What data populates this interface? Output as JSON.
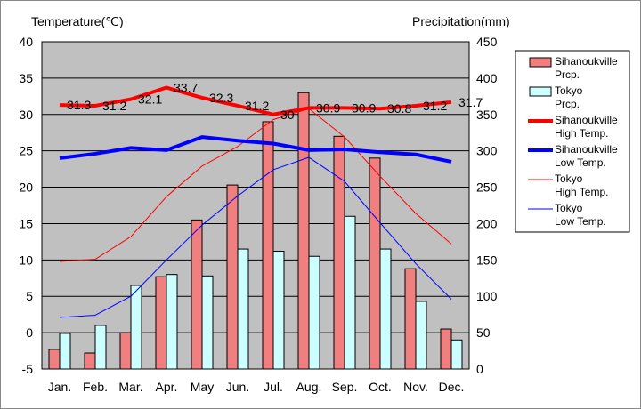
{
  "chart_data": {
    "type": "bar",
    "categories": [
      "Jan.",
      "Feb.",
      "Mar.",
      "Apr.",
      "May",
      "Jun.",
      "Jul.",
      "Aug.",
      "Sep.",
      "Oct.",
      "Nov.",
      "Dec."
    ],
    "left_axis": {
      "title": "Temperature(℃)",
      "min": -5,
      "max": 40,
      "step": 5
    },
    "right_axis": {
      "title": "Precipitation(mm)",
      "min": 0,
      "max": 450,
      "step": 50
    },
    "series": [
      {
        "name": "Sihanoukville Prcp.",
        "legend": [
          "Sihanoukville",
          "Prcp."
        ],
        "type": "bar",
        "axis": "right",
        "color": "#f08080",
        "values": [
          27,
          22,
          50,
          127,
          205,
          253,
          340,
          380,
          320,
          290,
          138,
          55
        ]
      },
      {
        "name": "Tokyo Prcp.",
        "legend": [
          "Tokyo",
          "Prcp."
        ],
        "type": "bar",
        "axis": "right",
        "color": "#ccffff",
        "values": [
          49,
          60,
          115,
          130,
          128,
          165,
          162,
          155,
          210,
          165,
          93,
          40
        ]
      },
      {
        "name": "Sihanoukville High Temp.",
        "legend": [
          "Sihanoukville",
          "High Temp."
        ],
        "type": "line",
        "axis": "left",
        "color": "#ff0000",
        "width": 4,
        "values": [
          31.3,
          31.2,
          32.1,
          33.7,
          32.3,
          31.2,
          30.0,
          30.9,
          30.9,
          30.8,
          31.2,
          31.7
        ],
        "labels": [
          "31.3",
          "31.2",
          "32.1",
          "33.7",
          "32.3",
          "31.2",
          "30",
          "30.9",
          "30.9",
          "30.8",
          "31.2",
          "31.7"
        ]
      },
      {
        "name": "Sihanoukville Low Temp.",
        "legend": [
          "Sihanoukville",
          "Low Temp."
        ],
        "type": "line",
        "axis": "left",
        "color": "#0000ff",
        "width": 4,
        "values": [
          24.0,
          24.6,
          25.4,
          25.1,
          26.9,
          26.4,
          26.0,
          25.1,
          25.2,
          24.8,
          24.5,
          23.5
        ]
      },
      {
        "name": "Tokyo High Temp.",
        "legend": [
          "Tokyo",
          "High Temp."
        ],
        "type": "line",
        "axis": "left",
        "color": "#ff0000",
        "width": 1,
        "values": [
          9.8,
          10.1,
          13.2,
          18.7,
          22.9,
          25.6,
          29.3,
          30.8,
          26.9,
          21.5,
          16.4,
          12.2
        ]
      },
      {
        "name": "Tokyo Low Temp.",
        "legend": [
          "Tokyo",
          "Low Temp."
        ],
        "type": "line",
        "axis": "left",
        "color": "#0000ff",
        "width": 1,
        "values": [
          2.1,
          2.4,
          5.0,
          10.0,
          14.8,
          18.8,
          22.4,
          24.1,
          20.8,
          15.1,
          9.5,
          4.6
        ]
      }
    ],
    "grid": true,
    "legend_position": "right",
    "plot_background": "#c0c0c0"
  }
}
